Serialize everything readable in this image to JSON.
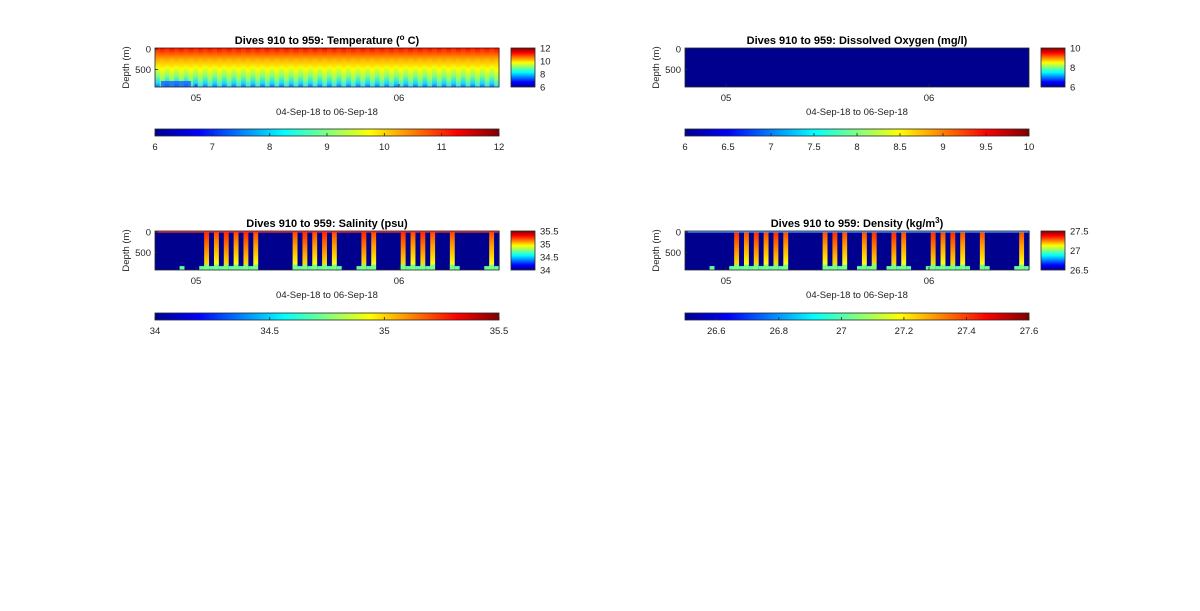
{
  "figure": {
    "panels": [
      {
        "id": "temperature",
        "title_main": "Dives 910 to 959: Temperature (",
        "title_sup": "o",
        "title_end": " C)",
        "ylabel": "Depth (m)",
        "y_ticks": [
          "0",
          "500"
        ],
        "x_ticks": [
          "05",
          "06"
        ],
        "xlabel": "04-Sep-18 to 06-Sep-18",
        "clim": [
          6,
          12
        ],
        "side_ticks": [
          "12",
          "10",
          "8",
          "6"
        ],
        "bottom_ticks": [
          "6",
          "7",
          "8",
          "9",
          "10",
          "11",
          "12"
        ],
        "pattern": "temperature"
      },
      {
        "id": "oxygen",
        "title_main": "Dives 910 to 959: Dissolved Oxygen (mg/l)",
        "title_sup": "",
        "title_end": "",
        "ylabel": "Depth (m)",
        "y_ticks": [
          "0",
          "500"
        ],
        "x_ticks": [
          "05",
          "06"
        ],
        "xlabel": "04-Sep-18 to 06-Sep-18",
        "clim": [
          6,
          10
        ],
        "side_ticks": [
          "10",
          "8",
          "6"
        ],
        "bottom_ticks": [
          "6",
          "6.5",
          "7",
          "7.5",
          "8",
          "8.5",
          "9",
          "9.5",
          "10"
        ],
        "pattern": "uniform-min"
      },
      {
        "id": "salinity",
        "title_main": "Dives 910 to 959: Salinity (psu)",
        "title_sup": "",
        "title_end": "",
        "ylabel": "Depth (m)",
        "y_ticks": [
          "0",
          "500"
        ],
        "x_ticks": [
          "05",
          "06"
        ],
        "xlabel": "04-Sep-18 to 06-Sep-18",
        "clim": [
          34,
          35.5
        ],
        "side_ticks": [
          "35.5",
          "35",
          "34.5",
          "34"
        ],
        "bottom_ticks": [
          "34",
          "34.5",
          "35",
          "35.5"
        ],
        "pattern": "striped"
      },
      {
        "id": "density",
        "title_main": "Dives 910 to 959: Density (kg/m",
        "title_sup": "3",
        "title_end": ")",
        "ylabel": "Depth (m)",
        "y_ticks": [
          "0",
          "500"
        ],
        "x_ticks": [
          "05",
          "06"
        ],
        "xlabel": "04-Sep-18 to 06-Sep-18",
        "clim": [
          26.5,
          27.6
        ],
        "side_ticks": [
          "27.5",
          "27",
          "26.5"
        ],
        "bottom_ticks": [
          "26.6",
          "26.8",
          "27",
          "27.2",
          "27.4",
          "27.6"
        ],
        "pattern": "striped"
      }
    ]
  },
  "chart_data": [
    {
      "type": "heatmap",
      "title": "Dives 910 to 959: Temperature (o C)",
      "ylabel": "Depth (m)",
      "xlabel": "04-Sep-18 to 06-Sep-18",
      "y_ticks": [
        0,
        500
      ],
      "x_ticks": [
        "05",
        "06"
      ],
      "colorbar_range": [
        6,
        12
      ],
      "colormap": "jet"
    },
    {
      "type": "heatmap",
      "title": "Dives 910 to 959: Dissolved Oxygen (mg/l)",
      "ylabel": "Depth (m)",
      "xlabel": "04-Sep-18 to 06-Sep-18",
      "y_ticks": [
        0,
        500
      ],
      "x_ticks": [
        "05",
        "06"
      ],
      "colorbar_range": [
        6,
        10
      ],
      "colormap": "jet"
    },
    {
      "type": "heatmap",
      "title": "Dives 910 to 959: Salinity (psu)",
      "ylabel": "Depth (m)",
      "xlabel": "04-Sep-18 to 06-Sep-18",
      "y_ticks": [
        0,
        500
      ],
      "x_ticks": [
        "05",
        "06"
      ],
      "colorbar_range": [
        34,
        35.5
      ],
      "colormap": "jet"
    },
    {
      "type": "heatmap",
      "title": "Dives 910 to 959: Density (kg/m3)",
      "ylabel": "Depth (m)",
      "xlabel": "04-Sep-18 to 06-Sep-18",
      "y_ticks": [
        0,
        500
      ],
      "x_ticks": [
        "05",
        "06"
      ],
      "colorbar_range": [
        26.5,
        27.6
      ],
      "colormap": "jet"
    }
  ]
}
